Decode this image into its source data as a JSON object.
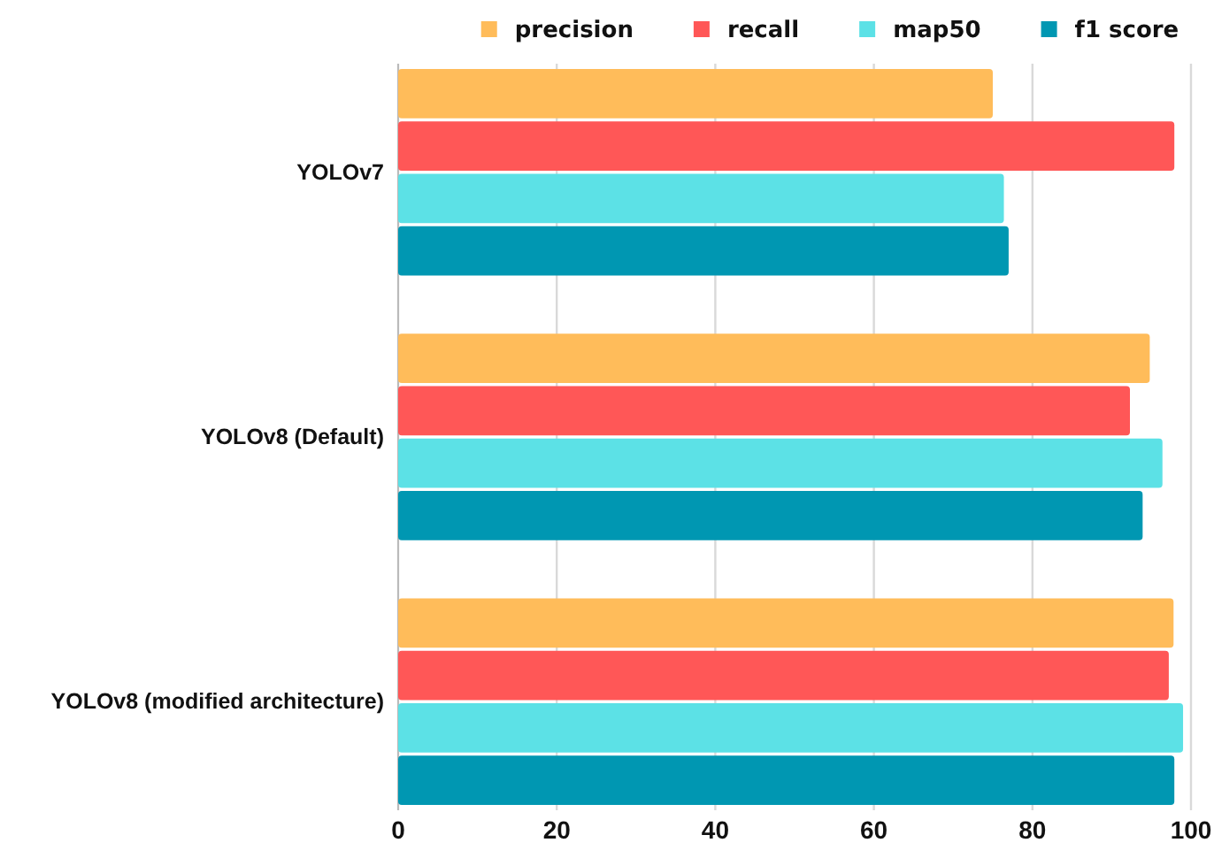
{
  "chart_data": {
    "type": "bar",
    "orientation": "horizontal",
    "categories": [
      "YOLOv7",
      "YOLOv8 (Default)",
      "YOLOv8 (modified architecture)"
    ],
    "series": [
      {
        "name": "precision",
        "color": "#ffbc5a",
        "values": [
          75,
          94.8,
          97.8
        ]
      },
      {
        "name": "recall",
        "color": "#ff5757",
        "values": [
          97.9,
          92.3,
          97.2
        ]
      },
      {
        "name": "map50",
        "color": "#5ce1e6",
        "values": [
          76.4,
          96.4,
          99
        ]
      },
      {
        "name": "f1 score",
        "color": "#0097b2",
        "values": [
          77,
          93.9,
          97.9
        ]
      }
    ],
    "xlim": [
      0,
      100
    ],
    "xticks": [
      0,
      20,
      40,
      60,
      80,
      100
    ],
    "grid": "x",
    "legend": "top"
  }
}
